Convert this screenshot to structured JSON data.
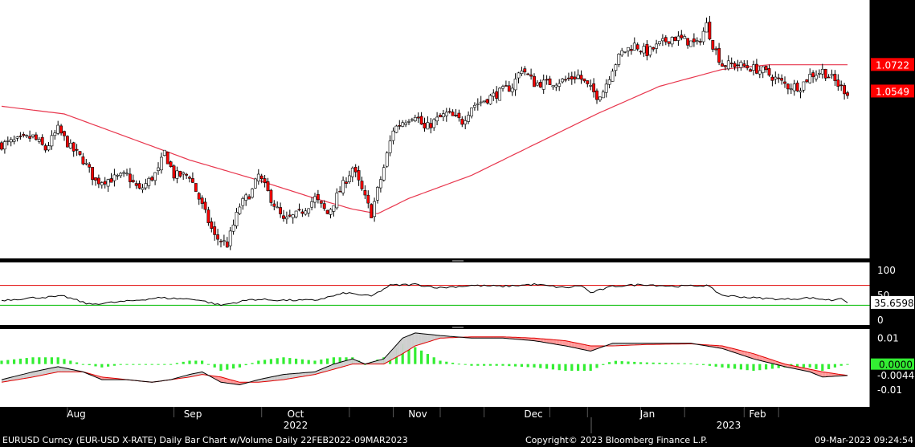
{
  "footer": {
    "left": "EURUSD Curncy (EUR-USD X-RATE) Daily Bar Chart w/Volume  Daily 22FEB2022-09MAR2023",
    "center": "Copyright© 2023 Bloomberg Finance L.P.",
    "right": "09-Mar-2023 09:24:54"
  },
  "colors": {
    "background": "#000000",
    "plot_background": "#ffffff",
    "up_candle": "#ffffff",
    "down_candle": "#ff0000",
    "moving_average": "#e8374e",
    "rsi_line": "#000000",
    "rsi_upper": "#e00000",
    "rsi_lower": "#00bb00",
    "macd_line": "#000000",
    "signal_line": "#e00000",
    "hist_bar": "#33ee33",
    "fill_bull": "#cfcfcf",
    "fill_bear": "#ff9a9a"
  },
  "chart_data": [
    {
      "type": "candlestick",
      "panel": "price",
      "yticks": [
        "1.1000",
        "1.0800",
        "1.0600",
        "1.0400",
        "1.0200",
        "1.0000",
        "0.9800",
        "0.9600"
      ],
      "ylim": [
        0.948,
        1.11
      ],
      "x_month_labels": [
        "Aug",
        "Sep",
        "Oct",
        "Nov",
        "Dec",
        "Jan",
        "Feb"
      ],
      "x_year_labels": [
        "2022",
        "2023"
      ],
      "last_price_label": "1.0549",
      "last_price": 1.0549,
      "moving_average_label": "1.0722",
      "moving_average_last": 1.0722,
      "close_anchors": [
        [
          0,
          1.02
        ],
        [
          10,
          1.025
        ],
        [
          14,
          1.017
        ],
        [
          18,
          1.03
        ],
        [
          22,
          1.018
        ],
        [
          26,
          1.01
        ],
        [
          30,
          0.996
        ],
        [
          36,
          0.998
        ],
        [
          40,
          1.0
        ],
        [
          44,
          0.99
        ],
        [
          50,
          1.003
        ],
        [
          52,
          1.015
        ],
        [
          55,
          1.0
        ],
        [
          60,
          1.0
        ],
        [
          64,
          0.98
        ],
        [
          68,
          0.96
        ],
        [
          72,
          0.955
        ],
        [
          76,
          0.98
        ],
        [
          80,
          0.99
        ],
        [
          82,
          1.0
        ],
        [
          86,
          0.985
        ],
        [
          90,
          0.97
        ],
        [
          95,
          0.975
        ],
        [
          100,
          0.985
        ],
        [
          104,
          0.975
        ],
        [
          108,
          0.99
        ],
        [
          112,
          1.005
        ],
        [
          114,
          0.995
        ],
        [
          116,
          0.985
        ],
        [
          118,
          0.975
        ],
        [
          120,
          0.99
        ],
        [
          122,
          1.005
        ],
        [
          125,
          1.03
        ],
        [
          128,
          1.035
        ],
        [
          132,
          1.04
        ],
        [
          135,
          1.03
        ],
        [
          138,
          1.035
        ],
        [
          142,
          1.04
        ],
        [
          147,
          1.035
        ],
        [
          150,
          1.045
        ],
        [
          155,
          1.05
        ],
        [
          160,
          1.055
        ],
        [
          163,
          1.058
        ],
        [
          166,
          1.07
        ],
        [
          170,
          1.06
        ],
        [
          174,
          1.06
        ],
        [
          180,
          1.062
        ],
        [
          184,
          1.065
        ],
        [
          187,
          1.058
        ],
        [
          190,
          1.052
        ],
        [
          192,
          1.055
        ],
        [
          195,
          1.07
        ],
        [
          198,
          1.08
        ],
        [
          202,
          1.085
        ],
        [
          206,
          1.08
        ],
        [
          210,
          1.085
        ],
        [
          214,
          1.09
        ],
        [
          218,
          1.088
        ],
        [
          222,
          1.085
        ],
        [
          225,
          1.098
        ],
        [
          227,
          1.085
        ],
        [
          230,
          1.072
        ],
        [
          235,
          1.072
        ],
        [
          239,
          1.07
        ],
        [
          243,
          1.068
        ],
        [
          247,
          1.063
        ],
        [
          251,
          1.058
        ],
        [
          255,
          1.058
        ],
        [
          258,
          1.065
        ],
        [
          262,
          1.068
        ],
        [
          265,
          1.063
        ],
        [
          268,
          1.057
        ],
        [
          270,
          1.054
        ]
      ],
      "ma_anchors": [
        [
          0,
          1.045
        ],
        [
          20,
          1.04
        ],
        [
          40,
          1.025
        ],
        [
          60,
          1.01
        ],
        [
          80,
          0.998
        ],
        [
          100,
          0.985
        ],
        [
          112,
          0.978
        ],
        [
          120,
          0.975
        ],
        [
          130,
          0.985
        ],
        [
          150,
          1.0
        ],
        [
          170,
          1.02
        ],
        [
          190,
          1.04
        ],
        [
          210,
          1.058
        ],
        [
          230,
          1.069
        ],
        [
          245,
          1.072
        ],
        [
          270,
          1.072
        ]
      ]
    },
    {
      "type": "line",
      "panel": "rsi",
      "yticks": [
        "100",
        "50",
        "0"
      ],
      "ylim": [
        0,
        100
      ],
      "upper_band": 70,
      "lower_band": 30,
      "last_value_label": "35.6598",
      "last_value": 35.66,
      "anchors": [
        [
          0,
          40
        ],
        [
          10,
          45
        ],
        [
          20,
          48
        ],
        [
          28,
          32
        ],
        [
          40,
          38
        ],
        [
          50,
          45
        ],
        [
          62,
          42
        ],
        [
          70,
          30
        ],
        [
          80,
          42
        ],
        [
          90,
          40
        ],
        [
          100,
          40
        ],
        [
          110,
          55
        ],
        [
          118,
          48
        ],
        [
          124,
          70
        ],
        [
          132,
          72
        ],
        [
          140,
          65
        ],
        [
          150,
          70
        ],
        [
          160,
          68
        ],
        [
          170,
          72
        ],
        [
          180,
          65
        ],
        [
          185,
          70
        ],
        [
          188,
          55
        ],
        [
          195,
          68
        ],
        [
          205,
          72
        ],
        [
          215,
          68
        ],
        [
          225,
          70
        ],
        [
          230,
          50
        ],
        [
          240,
          45
        ],
        [
          250,
          42
        ],
        [
          258,
          45
        ],
        [
          265,
          40
        ],
        [
          268,
          45
        ],
        [
          270,
          36
        ]
      ]
    },
    {
      "type": "line",
      "panel": "macd",
      "yticks": [
        "0.01",
        "-0.01"
      ],
      "ylim": [
        -0.0165,
        0.0135
      ],
      "zero_label": "0.0000",
      "signal_label": "-0.0044",
      "macd_anchors": [
        [
          0,
          -0.006
        ],
        [
          10,
          -0.003
        ],
        [
          18,
          -0.001
        ],
        [
          26,
          -0.003
        ],
        [
          32,
          -0.006
        ],
        [
          40,
          -0.006
        ],
        [
          48,
          -0.007
        ],
        [
          54,
          -0.006
        ],
        [
          60,
          -0.004
        ],
        [
          64,
          -0.003
        ],
        [
          70,
          -0.007
        ],
        [
          76,
          -0.008
        ],
        [
          82,
          -0.006
        ],
        [
          90,
          -0.004
        ],
        [
          100,
          -0.003
        ],
        [
          106,
          0.0
        ],
        [
          112,
          0.002
        ],
        [
          116,
          0.0
        ],
        [
          122,
          0.002
        ],
        [
          128,
          0.01
        ],
        [
          132,
          0.012
        ],
        [
          140,
          0.011
        ],
        [
          150,
          0.01
        ],
        [
          160,
          0.01
        ],
        [
          170,
          0.009
        ],
        [
          180,
          0.007
        ],
        [
          188,
          0.005
        ],
        [
          195,
          0.008
        ],
        [
          205,
          0.008
        ],
        [
          220,
          0.008
        ],
        [
          230,
          0.006
        ],
        [
          240,
          0.002
        ],
        [
          250,
          -0.001
        ],
        [
          258,
          -0.003
        ],
        [
          262,
          -0.005
        ],
        [
          270,
          -0.0044
        ]
      ],
      "signal_anchors": [
        [
          0,
          -0.007
        ],
        [
          10,
          -0.005
        ],
        [
          18,
          -0.003
        ],
        [
          26,
          -0.003
        ],
        [
          32,
          -0.005
        ],
        [
          40,
          -0.006
        ],
        [
          48,
          -0.007
        ],
        [
          54,
          -0.006
        ],
        [
          60,
          -0.005
        ],
        [
          64,
          -0.004
        ],
        [
          70,
          -0.005
        ],
        [
          76,
          -0.007
        ],
        [
          82,
          -0.007
        ],
        [
          90,
          -0.006
        ],
        [
          100,
          -0.004
        ],
        [
          106,
          -0.002
        ],
        [
          112,
          0.0
        ],
        [
          116,
          0.0
        ],
        [
          122,
          0.0
        ],
        [
          128,
          0.004
        ],
        [
          132,
          0.007
        ],
        [
          140,
          0.01
        ],
        [
          150,
          0.0105
        ],
        [
          160,
          0.0105
        ],
        [
          170,
          0.01
        ],
        [
          180,
          0.009
        ],
        [
          188,
          0.007
        ],
        [
          195,
          0.007
        ],
        [
          205,
          0.0075
        ],
        [
          220,
          0.0078
        ],
        [
          230,
          0.007
        ],
        [
          240,
          0.004
        ],
        [
          250,
          0.0
        ],
        [
          258,
          -0.002
        ],
        [
          262,
          -0.003
        ],
        [
          270,
          -0.0044
        ]
      ],
      "histogram": "macd minus signal"
    }
  ]
}
